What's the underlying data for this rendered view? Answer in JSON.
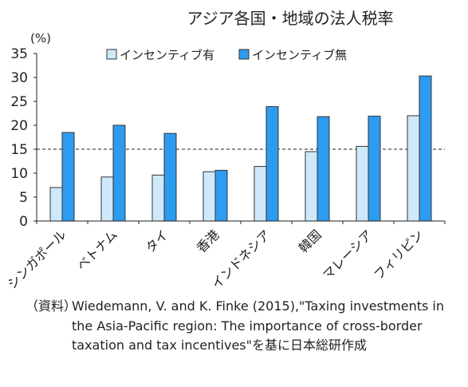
{
  "chart_data": {
    "type": "bar",
    "title": "アジア各国・地域の法人税率",
    "ylabel": "(%)",
    "xlabel": "",
    "ylim": [
      0,
      35
    ],
    "yticks": [
      0,
      5,
      10,
      15,
      20,
      25,
      30,
      35
    ],
    "reference_line": 15,
    "categories": [
      "シンガポール",
      "ベトナム",
      "タイ",
      "香港",
      "インドネシア",
      "韓国",
      "マレーシア",
      "フィリピン"
    ],
    "series": [
      {
        "name": "インセンティブ有",
        "color": "#cfe9fb",
        "values": [
          7.0,
          9.2,
          9.6,
          10.3,
          11.4,
          14.5,
          15.6,
          22.0
        ]
      },
      {
        "name": "インセンティブ無",
        "color": "#2d9bf0",
        "values": [
          18.5,
          20.0,
          18.3,
          10.6,
          23.9,
          21.8,
          21.9,
          30.3
        ]
      }
    ],
    "legend": "top"
  },
  "source": {
    "label": "（資料）",
    "text": "Wiedemann, V. and K. Finke (2015),\"Taxing investments in the Asia-Pacific region: The importance of cross-border  taxation and tax incentives\"を基に日本総研作成"
  }
}
